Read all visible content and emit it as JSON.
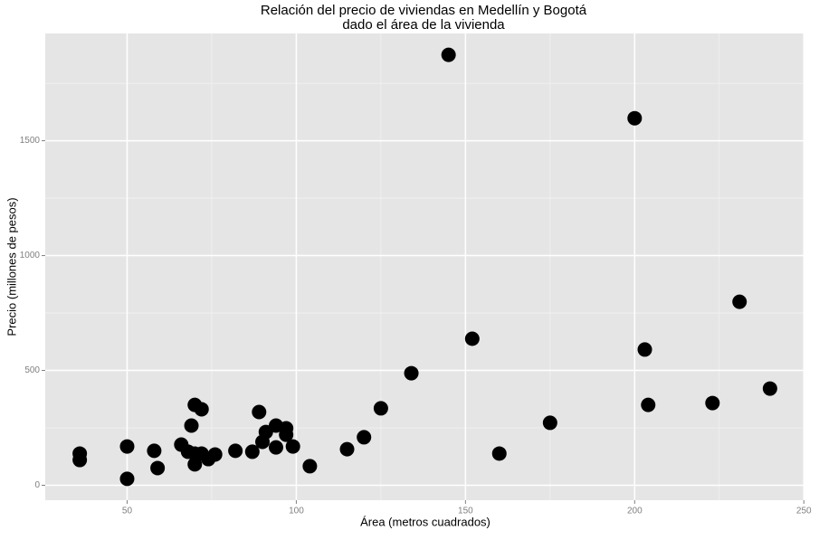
{
  "chart_data": {
    "type": "scatter",
    "title": [
      "Relación del precio de viviendas en Medellín y Bogotá",
      "dado el área de la vivienda"
    ],
    "x_label": "Área (metros cuadrados)",
    "y_label": "Precio (millones de pesos)",
    "color": "#000000",
    "grid": true,
    "xlim": [
      25.8,
      250.2
    ],
    "xticks": [
      50,
      100,
      150,
      200,
      250
    ],
    "ylim": [
      -65,
      1967
    ],
    "yticks": [
      0,
      500,
      1000,
      1500
    ],
    "x": [
      36,
      36,
      50,
      50,
      58,
      59,
      66,
      68,
      69,
      70,
      70,
      70,
      72,
      72,
      74,
      76,
      82,
      87,
      89,
      90,
      91,
      94,
      94,
      97,
      97,
      99,
      104,
      115,
      120,
      125,
      134,
      145,
      152,
      160,
      175,
      200,
      203,
      204,
      223,
      231,
      240
    ],
    "values": [
      138,
      110,
      169,
      28,
      150,
      75,
      177,
      146,
      260,
      350,
      138,
      91,
      331,
      138,
      114,
      134,
      150,
      146,
      319,
      189,
      232,
      260,
      165,
      248,
      220,
      169,
      83,
      157,
      209,
      335,
      488,
      1874,
      638,
      138,
      272,
      1598,
      591,
      350,
      358,
      799,
      421
    ]
  }
}
